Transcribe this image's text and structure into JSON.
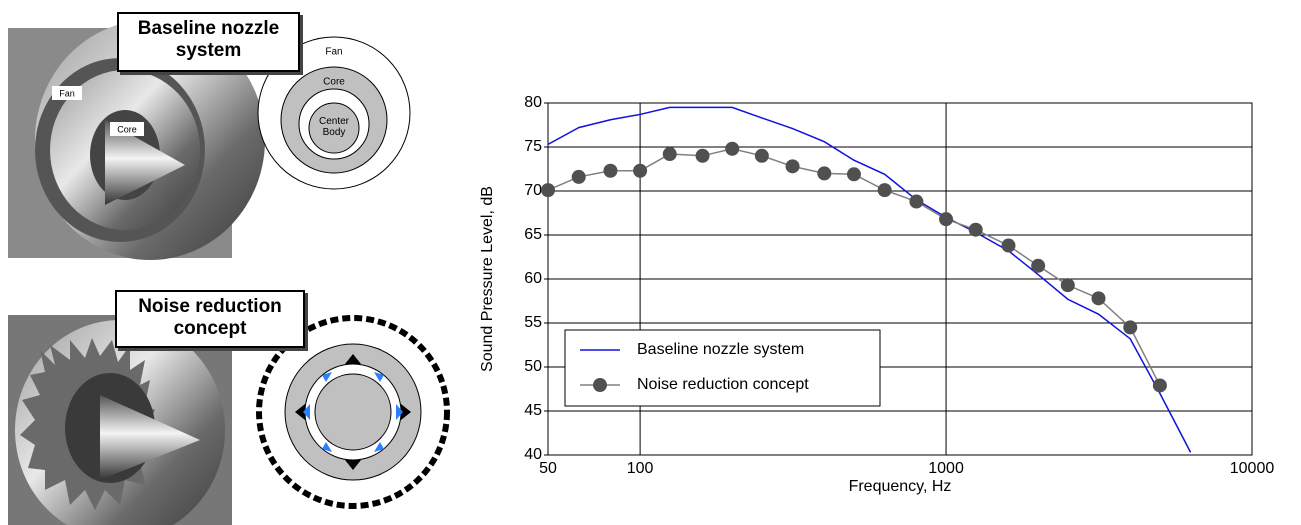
{
  "panels": {
    "top_label": "Baseline nozzle system",
    "bottom_label": "Noise reduction concept",
    "photo_fan": "Fan",
    "photo_core": "Core",
    "diagram_fan": "Fan",
    "diagram_core": "Core",
    "diagram_center": "Center Body"
  },
  "chart_data": {
    "type": "line",
    "xlabel": "Frequency, Hz",
    "ylabel": "Sound Pressure Level, dB",
    "x": [
      50,
      63,
      80,
      100,
      125,
      160,
      200,
      250,
      315,
      400,
      500,
      630,
      800,
      1000,
      1250,
      1600,
      2000,
      2500,
      3150,
      4000,
      5000,
      6300
    ],
    "series": [
      {
        "name": "Baseline nozzle system",
        "color": "#1010e0",
        "marker": false,
        "values": [
          75.3,
          77.2,
          78.1,
          78.7,
          79.5,
          79.5,
          79.5,
          78.3,
          77.1,
          75.6,
          73.5,
          71.9,
          69.0,
          67.0,
          65.3,
          63.2,
          60.5,
          57.7,
          56.0,
          53.2,
          47.0,
          40.3
        ]
      },
      {
        "name": "Noise reduction concept",
        "color": "#808080",
        "marker": true,
        "values": [
          70.1,
          71.6,
          72.3,
          72.3,
          74.2,
          74.0,
          74.8,
          74.0,
          72.8,
          72.0,
          71.9,
          70.1,
          68.8,
          66.8,
          65.6,
          63.8,
          61.5,
          59.3,
          57.8,
          54.5,
          47.9,
          null
        ]
      }
    ],
    "xlim": [
      50,
      10000
    ],
    "xticks": [
      50,
      100,
      1000,
      10000
    ],
    "xscale": "log",
    "ylim": [
      40,
      80
    ],
    "yticks": [
      40,
      45,
      50,
      55,
      60,
      65,
      70,
      75,
      80
    ],
    "grid": true,
    "legend": "lower left"
  }
}
